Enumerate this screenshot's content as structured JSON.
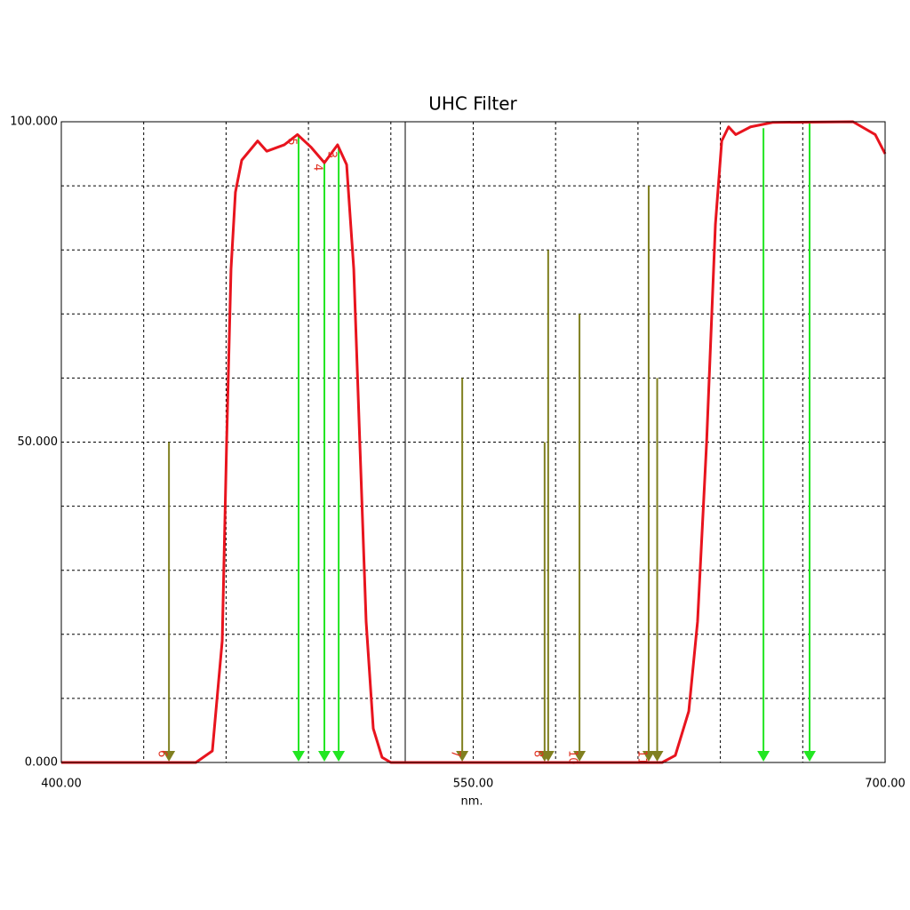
{
  "chart_data": {
    "type": "line",
    "title": "UHC Filter",
    "x_label": "nm.",
    "xlim": [
      400,
      700
    ],
    "ylim": [
      0,
      100
    ],
    "xticks": [
      {
        "value": 400,
        "label": "400.00"
      },
      {
        "value": 550,
        "label": "550.00"
      },
      {
        "value": 700,
        "label": "700.00"
      }
    ],
    "yticks": [
      {
        "value": 0,
        "label": "0.000"
      },
      {
        "value": 50,
        "label": "50.000"
      },
      {
        "value": 100,
        "label": "100.000"
      }
    ],
    "xgrid": [
      430,
      460,
      490,
      520,
      550,
      580,
      610,
      640,
      670
    ],
    "ygrid": [
      10,
      20,
      30,
      40,
      50,
      60,
      70,
      80,
      90
    ],
    "series": [
      {
        "color": "#e8141e",
        "x": [
          400,
          449,
          455,
          458.6,
          460.2,
          461.8,
          463.4,
          465.7,
          471.5,
          474.8,
          481.2,
          486,
          491,
          495.8,
          500.6,
          503.9,
          506.5,
          508.7,
          511,
          513.6,
          516.8,
          520,
          618.8,
          623.6,
          628.5,
          631.7,
          635,
          638.2,
          640.5,
          643,
          645.6,
          651,
          659,
          688.3,
          696.4,
          700
        ],
        "values": [
          0,
          0,
          1.8,
          19,
          50,
          77,
          89,
          94,
          97,
          95.4,
          96.4,
          98,
          96,
          93.6,
          96.4,
          93.3,
          77,
          50,
          22,
          5.3,
          0.8,
          0,
          0,
          1.1,
          8,
          22,
          50,
          84,
          97,
          99.2,
          98,
          99.2,
          99.9,
          100,
          98,
          95
        ]
      }
    ],
    "marker_groups": [
      {
        "color": "#22e622",
        "x": [
          486.4,
          495.8,
          501,
          655.7,
          672.5
        ],
        "values": [
          98,
          94,
          96,
          99,
          100
        ],
        "labels": [
          "5",
          "4",
          "3",
          null,
          null
        ]
      },
      {
        "color": "#808020",
        "x": [
          439.2,
          546,
          576,
          577.3,
          588.7,
          613.9,
          617
        ],
        "values": [
          50,
          60,
          50,
          80,
          70,
          90,
          60
        ],
        "labels": [
          "6",
          "7",
          "8",
          null,
          "10",
          "11",
          null
        ]
      }
    ]
  }
}
